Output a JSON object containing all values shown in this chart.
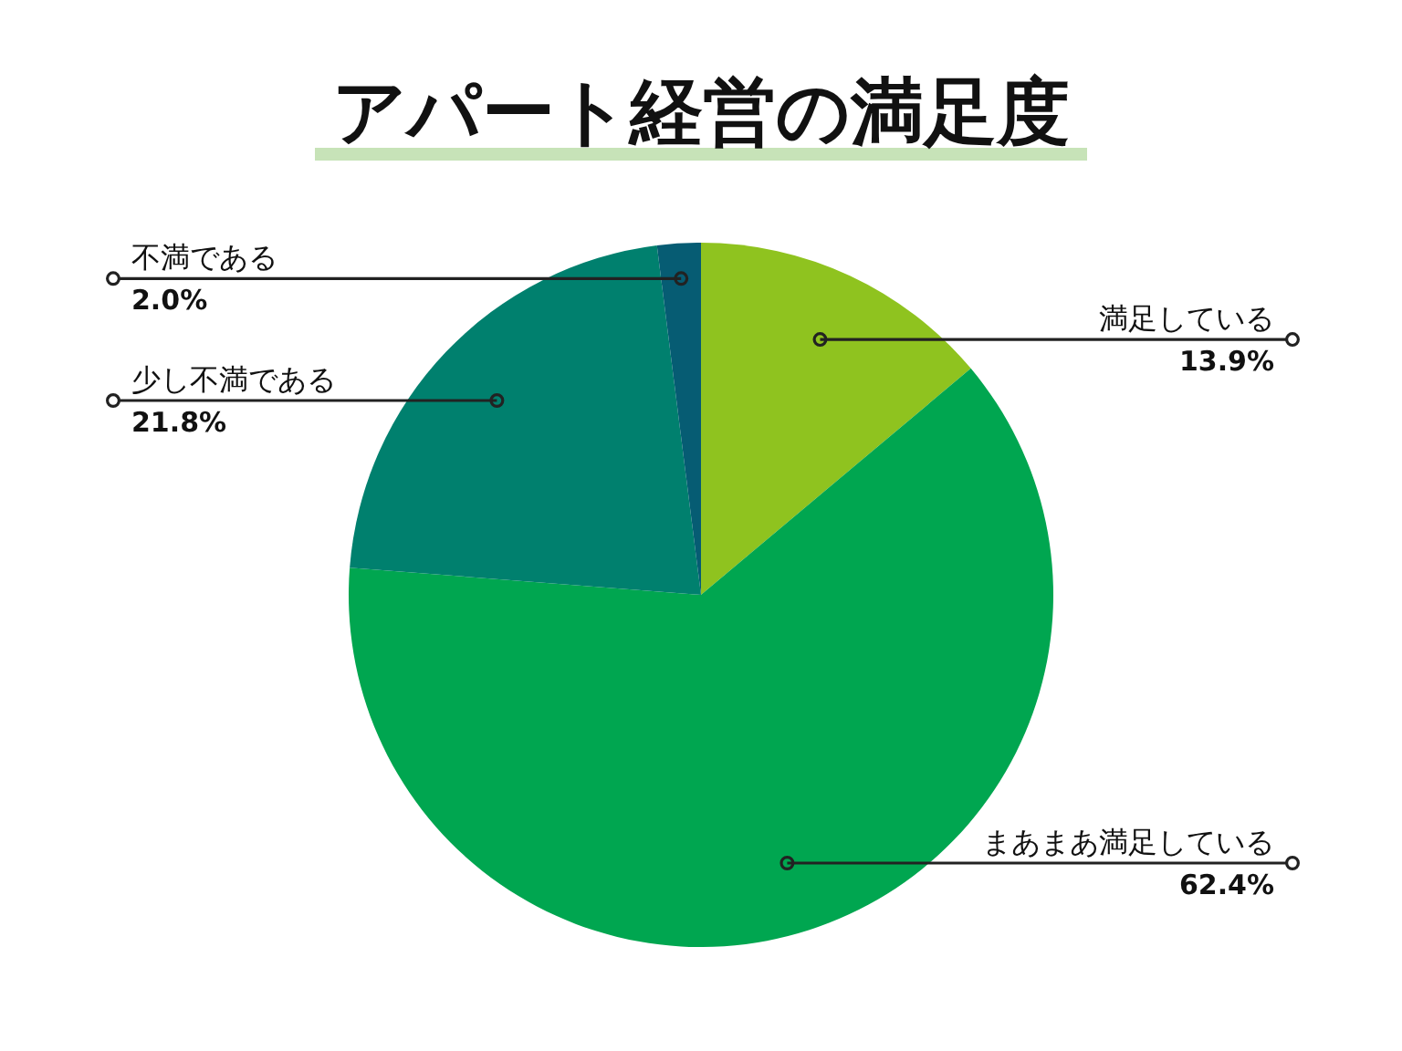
{
  "chart_data": {
    "type": "pie",
    "title": "アパート経営の満足度",
    "categories": [
      "満足している",
      "まあまあ満足している",
      "少し不満である",
      "不満である"
    ],
    "values": [
      13.9,
      62.4,
      21.8,
      2.0
    ],
    "colors": [
      "#8fc31f",
      "#00a650",
      "#00806e",
      "#065c73"
    ],
    "value_labels": [
      "13.9%",
      "62.4%",
      "21.8%",
      "2.0%"
    ]
  }
}
